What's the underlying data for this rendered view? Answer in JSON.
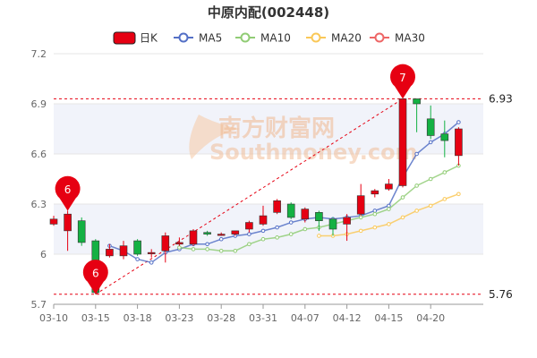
{
  "chart_data": {
    "type": "candlestick",
    "title": "中原内配(002448)",
    "legend": [
      {
        "name": "日K",
        "color": "#e60012"
      },
      {
        "name": "MA5",
        "color": "#5470c6"
      },
      {
        "name": "MA10",
        "color": "#91cc75"
      },
      {
        "name": "MA20",
        "color": "#fac858"
      },
      {
        "name": "MA30",
        "color": "#ee6666"
      }
    ],
    "legend_position": "top",
    "ylim": [
      5.7,
      7.2
    ],
    "yticks": [
      "7.2",
      "6.9",
      "6.6",
      "6.3",
      "6",
      "5.7"
    ],
    "xtick_labels": [
      {
        "index": 0,
        "label": "03-10"
      },
      {
        "index": 3,
        "label": "03-15"
      },
      {
        "index": 6,
        "label": "03-18"
      },
      {
        "index": 9,
        "label": "03-23"
      },
      {
        "index": 12,
        "label": "03-28"
      },
      {
        "index": 15,
        "label": "03-31"
      },
      {
        "index": 18,
        "label": "04-07"
      },
      {
        "index": 21,
        "label": "04-12"
      },
      {
        "index": 24,
        "label": "04-15"
      },
      {
        "index": 27,
        "label": "04-20"
      }
    ],
    "dates": [
      "03-10",
      "03-11",
      "03-14",
      "03-15",
      "03-16",
      "03-17",
      "03-18",
      "03-21",
      "03-22",
      "03-23",
      "03-24",
      "03-25",
      "03-28",
      "03-29",
      "03-30",
      "03-31",
      "04-01",
      "04-06",
      "04-07",
      "04-08",
      "04-11",
      "04-12",
      "04-13",
      "04-14",
      "04-15",
      "04-18",
      "04-19",
      "04-20",
      "04-21",
      "04-22"
    ],
    "candles": [
      {
        "open": 6.18,
        "close": 6.21,
        "high": 6.23,
        "low": 6.17
      },
      {
        "open": 6.14,
        "close": 6.24,
        "high": 6.26,
        "low": 6.02
      },
      {
        "open": 6.2,
        "close": 6.07,
        "high": 6.22,
        "low": 6.05
      },
      {
        "open": 6.08,
        "close": 5.77,
        "high": 6.09,
        "low": 5.76
      },
      {
        "open": 5.99,
        "close": 6.03,
        "high": 6.06,
        "low": 5.98
      },
      {
        "open": 5.99,
        "close": 6.05,
        "high": 6.08,
        "low": 5.97
      },
      {
        "open": 6.08,
        "close": 6.0,
        "high": 6.09,
        "low": 5.99
      },
      {
        "open": 6.01,
        "close": 6.01,
        "high": 6.03,
        "low": 5.98
      },
      {
        "open": 6.02,
        "close": 6.11,
        "high": 6.13,
        "low": 5.95
      },
      {
        "open": 6.06,
        "close": 6.07,
        "high": 6.1,
        "low": 6.05
      },
      {
        "open": 6.06,
        "close": 6.14,
        "high": 6.15,
        "low": 6.05
      },
      {
        "open": 6.13,
        "close": 6.12,
        "high": 6.14,
        "low": 6.11
      },
      {
        "open": 6.12,
        "close": 6.12,
        "high": 6.13,
        "low": 6.11
      },
      {
        "open": 6.12,
        "close": 6.14,
        "high": 6.14,
        "low": 6.11
      },
      {
        "open": 6.15,
        "close": 6.19,
        "high": 6.2,
        "low": 6.13
      },
      {
        "open": 6.18,
        "close": 6.23,
        "high": 6.29,
        "low": 6.17
      },
      {
        "open": 6.25,
        "close": 6.32,
        "high": 6.33,
        "low": 6.24
      },
      {
        "open": 6.3,
        "close": 6.22,
        "high": 6.31,
        "low": 6.21
      },
      {
        "open": 6.21,
        "close": 6.27,
        "high": 6.28,
        "low": 6.19
      },
      {
        "open": 6.25,
        "close": 6.2,
        "high": 6.26,
        "low": 6.14
      },
      {
        "open": 6.21,
        "close": 6.15,
        "high": 6.22,
        "low": 6.11
      },
      {
        "open": 6.18,
        "close": 6.22,
        "high": 6.24,
        "low": 6.08
      },
      {
        "open": 6.24,
        "close": 6.35,
        "high": 6.42,
        "low": 6.23
      },
      {
        "open": 6.36,
        "close": 6.38,
        "high": 6.39,
        "low": 6.34
      },
      {
        "open": 6.39,
        "close": 6.42,
        "high": 6.45,
        "low": 6.38
      },
      {
        "open": 6.41,
        "close": 6.93,
        "high": 6.93,
        "low": 6.4
      },
      {
        "open": 6.93,
        "close": 6.9,
        "high": 6.93,
        "low": 6.73
      },
      {
        "open": 6.81,
        "close": 6.71,
        "high": 6.89,
        "low": 6.69
      },
      {
        "open": 6.72,
        "close": 6.68,
        "high": 6.8,
        "low": 6.58
      },
      {
        "open": 6.59,
        "close": 6.75,
        "high": 6.76,
        "low": 6.53
      }
    ],
    "ma5": [
      null,
      null,
      null,
      null,
      6.05,
      6.02,
      5.97,
      5.95,
      6.01,
      6.03,
      6.06,
      6.06,
      6.09,
      6.11,
      6.12,
      6.14,
      6.16,
      6.19,
      6.21,
      6.22,
      6.21,
      6.22,
      6.23,
      6.26,
      6.29,
      6.46,
      6.6,
      6.67,
      6.72,
      6.79
    ],
    "ma10": [
      null,
      null,
      null,
      null,
      null,
      null,
      null,
      null,
      null,
      6.04,
      6.03,
      6.03,
      6.02,
      6.02,
      6.06,
      6.09,
      6.1,
      6.12,
      6.15,
      6.16,
      6.18,
      6.2,
      6.22,
      6.24,
      6.27,
      6.34,
      6.41,
      6.45,
      6.49,
      6.53
    ],
    "ma20": [
      null,
      null,
      null,
      null,
      null,
      null,
      null,
      null,
      null,
      null,
      null,
      null,
      null,
      null,
      null,
      null,
      null,
      null,
      null,
      6.11,
      6.11,
      6.12,
      6.14,
      6.16,
      6.18,
      6.22,
      6.26,
      6.29,
      6.33,
      6.36
    ],
    "level_lines": [
      {
        "value": 6.93,
        "label": "6.93"
      },
      {
        "value": 5.76,
        "label": "5.76"
      }
    ],
    "markers": [
      {
        "index": 1,
        "value": 6.26,
        "label": "6"
      },
      {
        "index": 3,
        "value": 5.76,
        "label": "6"
      },
      {
        "index": 25,
        "value": 6.93,
        "label": "7"
      }
    ],
    "trendline": {
      "from_index": 3,
      "from_value": 5.76,
      "to_index": 25,
      "to_value": 6.93
    },
    "colors": {
      "up": "#e60012",
      "down": "#14b143",
      "grid": "#e6e6e6",
      "level": "#e60012",
      "band": "#f1f3fa"
    },
    "watermark": {
      "main": "南方财富网",
      "sub": "Southmoney.com"
    }
  }
}
